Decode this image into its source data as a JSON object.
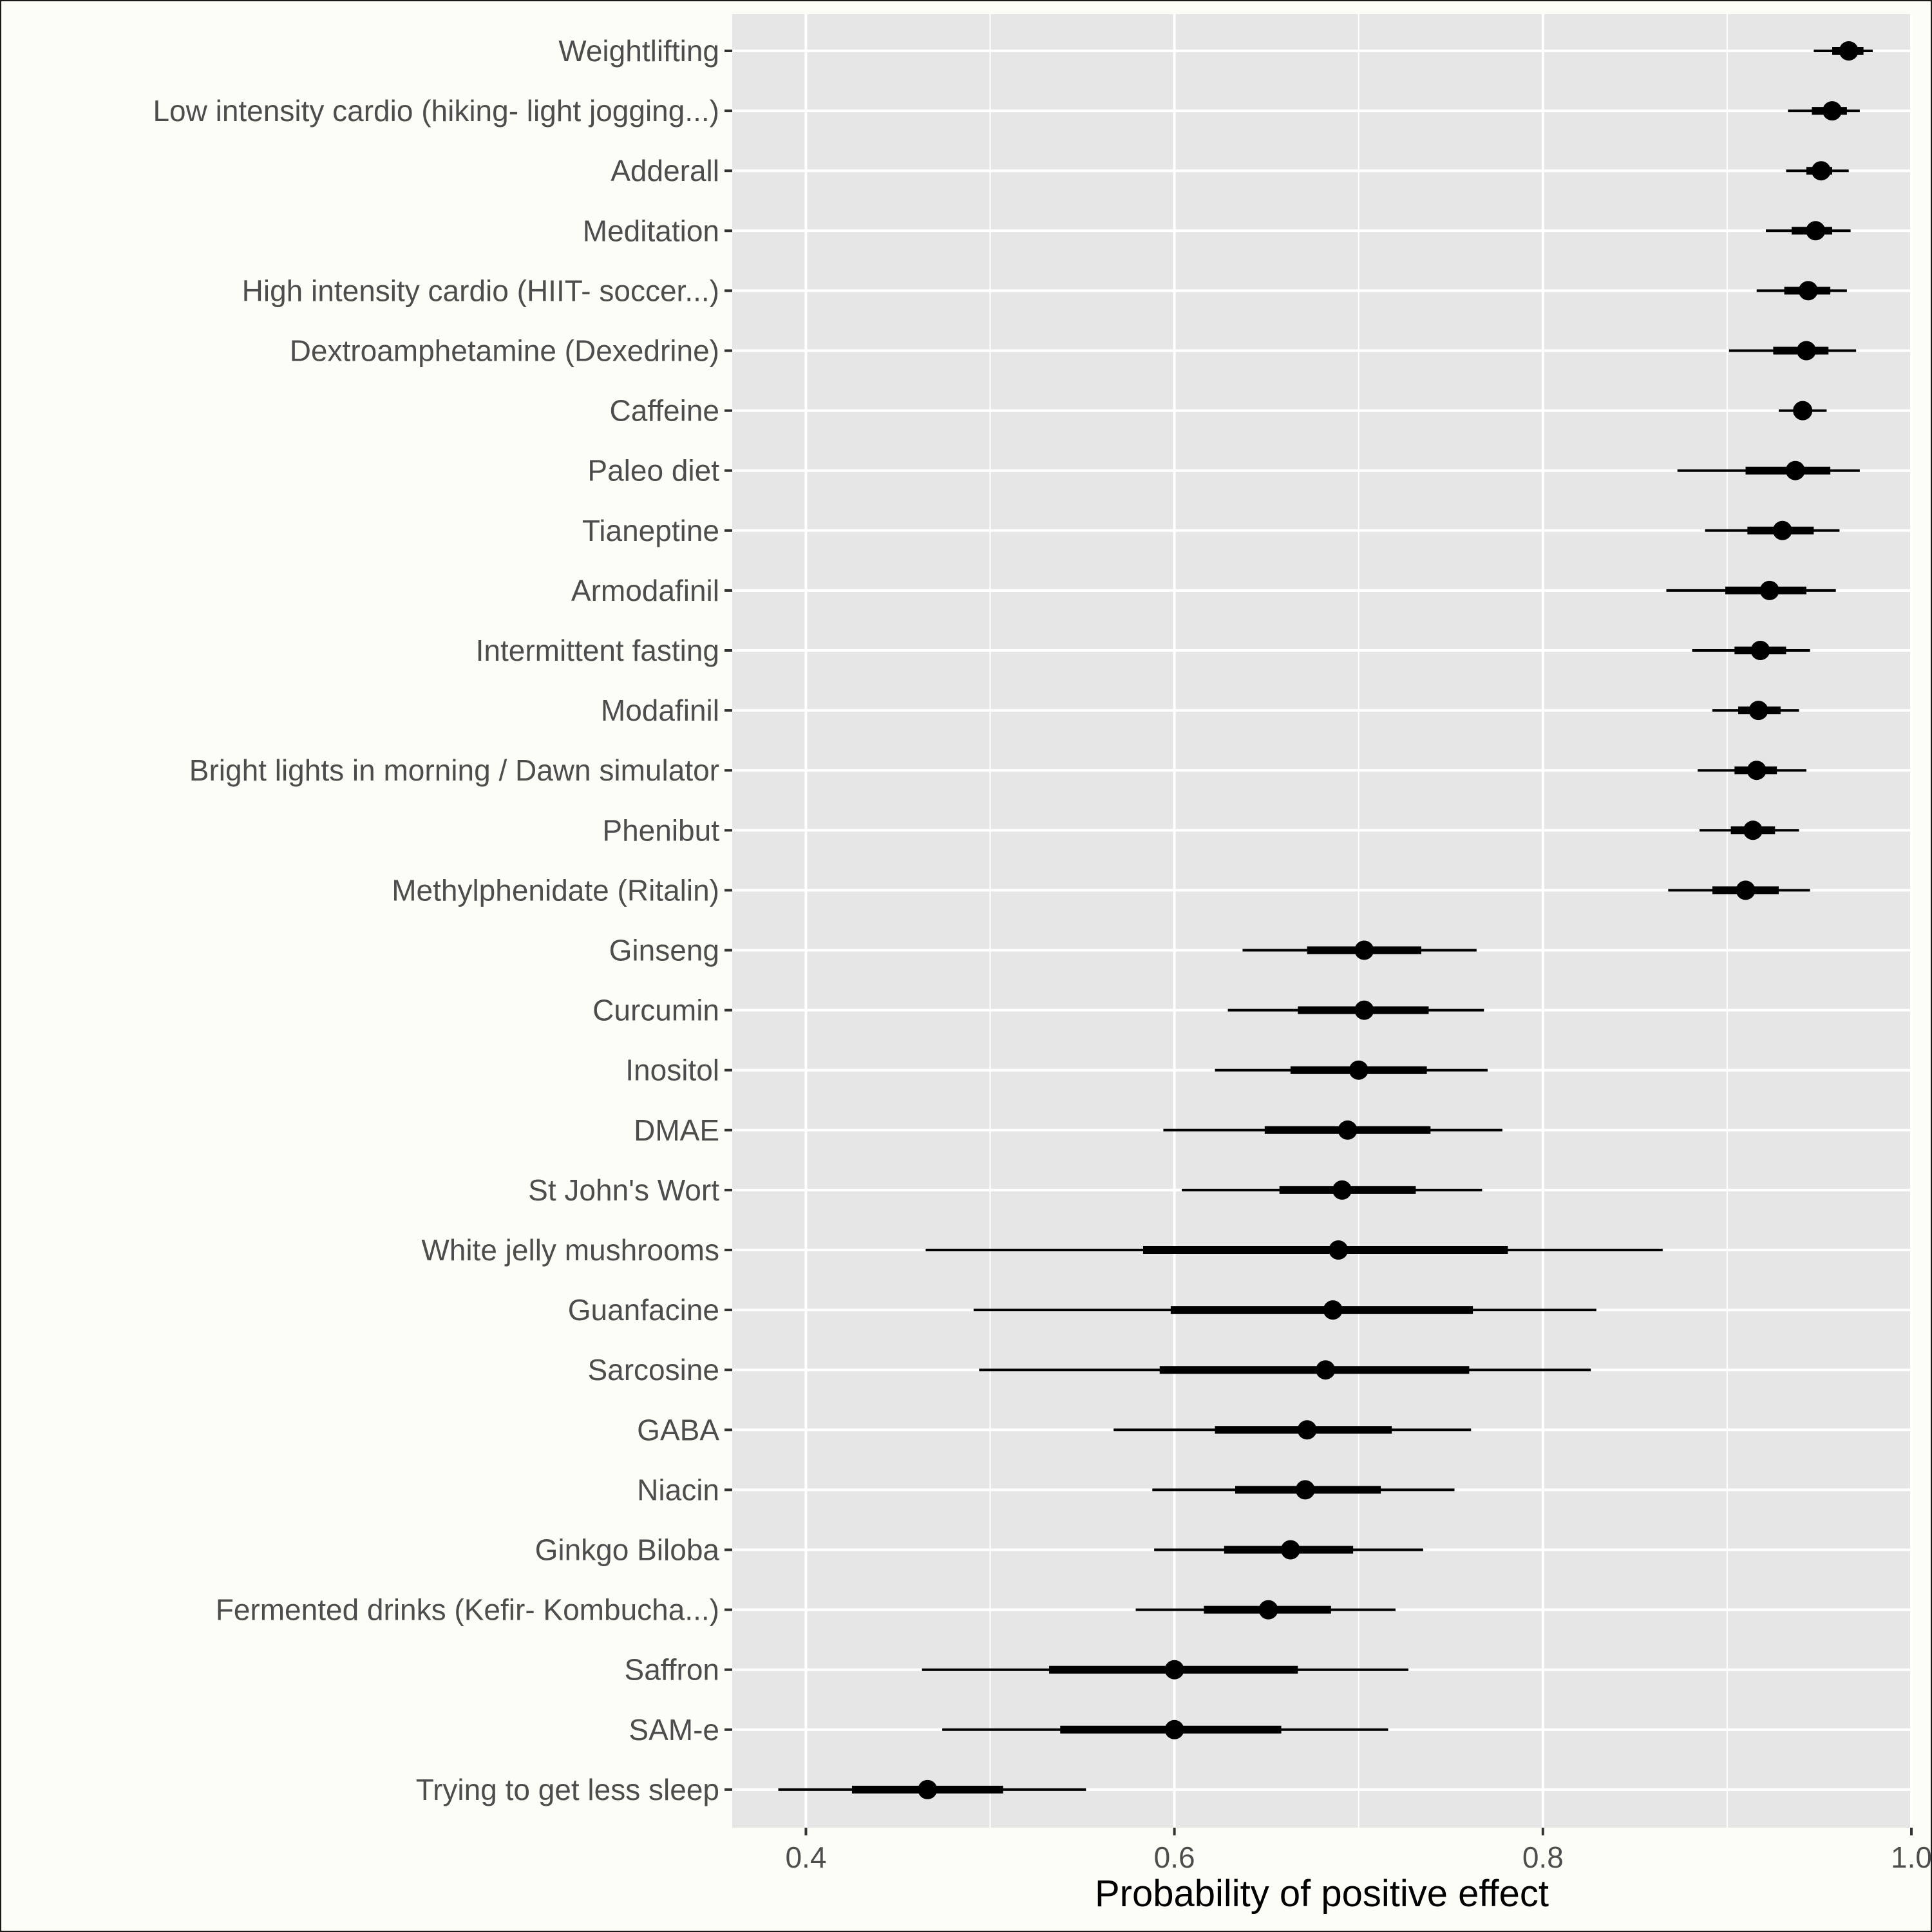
{
  "chart_data": {
    "type": "interval",
    "title": "",
    "xlabel": "Probability of positive effect",
    "ylabel": "",
    "xlim": [
      0.36,
      1.0
    ],
    "xticks": [
      0.4,
      0.6,
      0.8,
      1.0
    ],
    "xtick_labels": [
      "0.4",
      "0.6",
      "0.8",
      "1.0"
    ],
    "grid": true,
    "colors": {
      "panel": "#e6e6e6",
      "grid": "#ffffff",
      "marks": "#000000",
      "text": "#4d4d4d",
      "page": "#fcfdf7"
    },
    "categories": [
      "Weightlifting",
      "Low intensity cardio (hiking- light jogging...)",
      "Adderall",
      "Meditation",
      "High intensity cardio (HIIT- soccer...)",
      "Dextroamphetamine (Dexedrine)",
      "Caffeine",
      "Paleo diet",
      "Tianeptine",
      "Armodafinil",
      "Intermittent fasting",
      "Modafinil",
      "Bright lights in morning / Dawn simulator",
      "Phenibut",
      "Methylphenidate (Ritalin)",
      "Ginseng",
      "Curcumin",
      "Inositol",
      "DMAE",
      "St John's Wort",
      "White jelly mushrooms",
      "Guanfacine",
      "Sarcosine",
      "GABA",
      "Niacin",
      "Ginkgo Biloba",
      "Fermented drinks (Kefir- Kombucha...)",
      "Saffron",
      "SAM-e",
      "Trying to get less sleep"
    ],
    "estimate": [
      0.966,
      0.957,
      0.951,
      0.948,
      0.944,
      0.943,
      0.941,
      0.937,
      0.93,
      0.923,
      0.918,
      0.917,
      0.916,
      0.914,
      0.91,
      0.703,
      0.703,
      0.7,
      0.694,
      0.691,
      0.689,
      0.686,
      0.682,
      0.672,
      0.671,
      0.663,
      0.651,
      0.6,
      0.6,
      0.466
    ],
    "inner_low": [
      0.957,
      0.946,
      0.943,
      0.935,
      0.931,
      0.925,
      0.936,
      0.91,
      0.911,
      0.899,
      0.904,
      0.906,
      0.904,
      0.902,
      0.892,
      0.672,
      0.667,
      0.663,
      0.649,
      0.657,
      0.583,
      0.598,
      0.592,
      0.622,
      0.633,
      0.627,
      0.616,
      0.532,
      0.538,
      0.425
    ],
    "inner_high": [
      0.974,
      0.965,
      0.957,
      0.957,
      0.956,
      0.955,
      0.945,
      0.956,
      0.947,
      0.943,
      0.932,
      0.929,
      0.927,
      0.926,
      0.928,
      0.734,
      0.738,
      0.737,
      0.739,
      0.731,
      0.781,
      0.762,
      0.76,
      0.718,
      0.712,
      0.697,
      0.685,
      0.667,
      0.658,
      0.507
    ],
    "outer_low": [
      0.947,
      0.933,
      0.932,
      0.921,
      0.916,
      0.901,
      0.928,
      0.873,
      0.888,
      0.867,
      0.881,
      0.892,
      0.884,
      0.885,
      0.868,
      0.637,
      0.629,
      0.622,
      0.594,
      0.604,
      0.465,
      0.491,
      0.494,
      0.567,
      0.588,
      0.589,
      0.579,
      0.463,
      0.474,
      0.385
    ],
    "outer_high": [
      0.979,
      0.972,
      0.966,
      0.967,
      0.965,
      0.97,
      0.954,
      0.972,
      0.961,
      0.959,
      0.945,
      0.939,
      0.943,
      0.939,
      0.945,
      0.764,
      0.768,
      0.77,
      0.778,
      0.767,
      0.865,
      0.829,
      0.826,
      0.761,
      0.752,
      0.735,
      0.72,
      0.727,
      0.716,
      0.552
    ]
  }
}
